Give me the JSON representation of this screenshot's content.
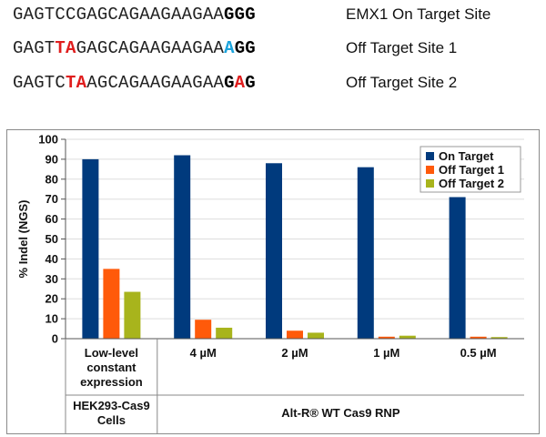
{
  "sequences": [
    {
      "segments": [
        {
          "text": "GAGTCCGAGCAGAAGAAGAA",
          "style": "n"
        },
        {
          "text": "GGG",
          "style": "k"
        }
      ],
      "label": "EMX1 On Target Site"
    },
    {
      "segments": [
        {
          "text": "GAGT",
          "style": "n"
        },
        {
          "text": "TA",
          "style": "r"
        },
        {
          "text": "GAGCAGAAGAAGAA",
          "style": "n"
        },
        {
          "text": "A",
          "style": "b"
        },
        {
          "text": "GG",
          "style": "k"
        }
      ],
      "label": "Off Target Site 1"
    },
    {
      "segments": [
        {
          "text": "GAGTC",
          "style": "n"
        },
        {
          "text": "TA",
          "style": "r"
        },
        {
          "text": "AGCAGAAGAAGAA",
          "style": "n"
        },
        {
          "text": "G",
          "style": "k"
        },
        {
          "text": "A",
          "style": "r"
        },
        {
          "text": "G",
          "style": "k"
        }
      ],
      "label": "Off Target Site 2"
    }
  ],
  "colors": {
    "on_target": "#003a7d",
    "off1": "#ff5a0a",
    "off2": "#a8b41c"
  },
  "chart_data": {
    "type": "bar",
    "ylabel": "% Indel (NGS)",
    "ylim": [
      0,
      100
    ],
    "yticks": [
      0,
      10,
      20,
      30,
      40,
      50,
      60,
      70,
      80,
      90,
      100
    ],
    "grid": true,
    "legend": "top-right",
    "categories": [
      "Low-level constant expression",
      "4 µM",
      "2 µM",
      "1 µM",
      "0.5 µM"
    ],
    "category_lines": [
      [
        "Low-level",
        "constant",
        "expression"
      ],
      [
        "4 µM"
      ],
      [
        "2 µM"
      ],
      [
        "1 µM"
      ],
      [
        "0.5 µM"
      ]
    ],
    "groups": [
      {
        "lines": [
          "HEK293-Cas9",
          "Cells"
        ],
        "span": [
          0,
          0
        ]
      },
      {
        "lines": [
          "Alt-R® WT Cas9 RNP"
        ],
        "span": [
          1,
          4
        ]
      }
    ],
    "series": [
      {
        "name": "On Target",
        "values": [
          90,
          92,
          88,
          86,
          71
        ]
      },
      {
        "name": "Off Target 1",
        "values": [
          35,
          9.5,
          4,
          1,
          1
        ]
      },
      {
        "name": "Off Target 2",
        "values": [
          23.5,
          5.5,
          3,
          1.5,
          0.8
        ]
      }
    ]
  }
}
